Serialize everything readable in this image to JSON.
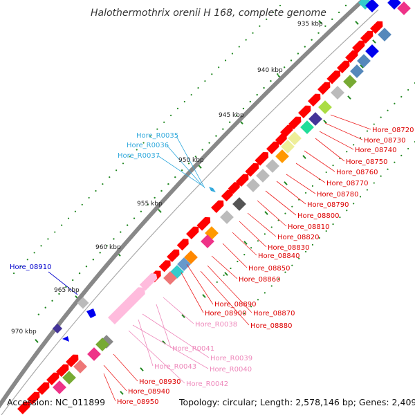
{
  "title": "Halothermothrix orenii H 168, complete genome",
  "footer": {
    "accession": "Accession: NC_011899",
    "summary": "Topology: circular; Length: 2,578,146 bp; Genes: 2,409"
  },
  "colors": {
    "red": "#ff0000",
    "light_blue": "#33bbdd",
    "blue": "#0000dd",
    "pink": "#ee88bb",
    "backbone": "#888888",
    "tick": "#228822"
  },
  "scale_labels": [
    "935 kbp",
    "940 kbp",
    "945 kbp",
    "950 kbp",
    "955 kbp",
    "960 kbp",
    "965 kbp",
    "970 kbp"
  ],
  "labels_red_right": [
    "Hore_08720",
    "Hore_08730",
    "Hore_08740",
    "Hore_08750",
    "Hore_08760",
    "Hore_08770",
    "Hore_08780",
    "Hore_08790",
    "Hore_08800",
    "Hore_08810",
    "Hore_08820",
    "Hore_08830",
    "Hore_08840",
    "Hore_08850",
    "Hore_08860"
  ],
  "labels_red_lower": [
    "Hore_08890",
    "Hore_08870",
    "Hore_08900",
    "Hore_08880"
  ],
  "labels_red_bottom": [
    "Hore_08930",
    "Hore_08940",
    "Hore_08950"
  ],
  "labels_rna_cyan": [
    "Hore_R0035",
    "Hore_R0036",
    "Hore_R0037"
  ],
  "labels_rna_pink": [
    "Hore_R0038",
    "Hore_R0041",
    "Hore_R0039",
    "Hore_R0043",
    "Hore_R0040",
    "Hore_R0042"
  ],
  "labels_blue": [
    "Hore_08910"
  ]
}
